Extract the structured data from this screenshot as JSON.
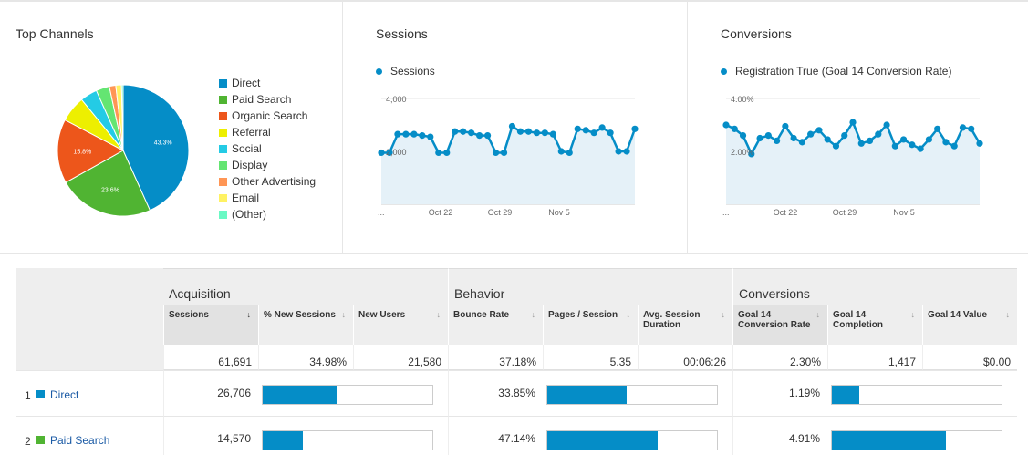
{
  "panels": {
    "top_channels": {
      "title": "Top Channels"
    },
    "sessions": {
      "title": "Sessions",
      "series_label": "Sessions"
    },
    "conversions": {
      "title": "Conversions",
      "series_label": "Registration True (Goal 14 Conversion Rate)"
    }
  },
  "pie": {
    "slices": [
      {
        "name": "Direct",
        "value": 43.3,
        "color": "#058dc7",
        "label": "43.3%"
      },
      {
        "name": "Paid Search",
        "value": 23.6,
        "color": "#50b432",
        "label": "23.6%"
      },
      {
        "name": "Organic Search",
        "value": 15.8,
        "color": "#ed561b",
        "label": "15.8%"
      },
      {
        "name": "Referral",
        "value": 6.4,
        "color": "#edef00",
        "label": ""
      },
      {
        "name": "Social",
        "value": 4.2,
        "color": "#24cbe5",
        "label": ""
      },
      {
        "name": "Display",
        "value": 3.3,
        "color": "#64e572",
        "label": ""
      },
      {
        "name": "Other Advertising",
        "value": 1.6,
        "color": "#ff9655",
        "label": ""
      },
      {
        "name": "Email",
        "value": 1.4,
        "color": "#fff263",
        "label": ""
      },
      {
        "name": "(Other)",
        "value": 0.4,
        "color": "#6af9c4",
        "label": ""
      }
    ]
  },
  "chart_data": [
    {
      "type": "pie",
      "title": "Top Channels",
      "categories": [
        "Direct",
        "Paid Search",
        "Organic Search",
        "Referral",
        "Social",
        "Display",
        "Other Advertising",
        "Email",
        "(Other)"
      ],
      "values": [
        43.3,
        23.6,
        15.8,
        6.4,
        4.2,
        3.3,
        1.6,
        1.4,
        0.4
      ]
    },
    {
      "type": "line",
      "title": "Sessions",
      "series": [
        {
          "name": "Sessions",
          "values": [
            1950,
            1950,
            2650,
            2650,
            2650,
            2600,
            2550,
            1950,
            1950,
            2750,
            2750,
            2700,
            2600,
            2600,
            1950,
            1950,
            2950,
            2750,
            2750,
            2700,
            2700,
            2650,
            2000,
            1950,
            2850,
            2800,
            2700,
            2900,
            2700,
            2000,
            2000,
            2850
          ]
        }
      ],
      "x_ticks": [
        "...",
        "Oct 22",
        "Oct 29",
        "Nov 5"
      ],
      "y_ticks": [
        "2,000",
        "4,000"
      ],
      "ylim": [
        0,
        4000
      ]
    },
    {
      "type": "line",
      "title": "Conversions",
      "series": [
        {
          "name": "Registration True (Goal 14 Conversion Rate)",
          "values": [
            3.0,
            2.85,
            2.6,
            1.9,
            2.5,
            2.6,
            2.4,
            2.95,
            2.5,
            2.35,
            2.65,
            2.8,
            2.45,
            2.2,
            2.6,
            3.1,
            2.3,
            2.4,
            2.65,
            3.0,
            2.2,
            2.45,
            2.25,
            2.1,
            2.45,
            2.85,
            2.35,
            2.2,
            2.9,
            2.85,
            2.3
          ]
        }
      ],
      "x_ticks": [
        "...",
        "Oct 22",
        "Oct 29",
        "Nov 5"
      ],
      "y_ticks": [
        "2.00%",
        "4.00%"
      ],
      "ylim": [
        0,
        4.0
      ]
    }
  ],
  "table": {
    "groups": [
      "Acquisition",
      "Behavior",
      "Conversions"
    ],
    "columns": [
      "Sessions",
      "% New Sessions",
      "New Users",
      "Bounce Rate",
      "Pages / Session",
      "Avg. Session Duration",
      "Goal 14 Conversion Rate",
      "Goal 14 Completion",
      "Goal 14 Value"
    ],
    "totals": [
      "61,691",
      "34.98%",
      "21,580",
      "37.18%",
      "5.35",
      "00:06:26",
      "2.30%",
      "1,417",
      "$0.00"
    ],
    "rows": [
      {
        "rank": "1",
        "name": "Direct",
        "color": "#058dc7",
        "sessions": "26,706",
        "sessions_share": 0.433,
        "bounce": "33.85%",
        "bounce_share": 0.47,
        "conv": "1.19%",
        "conv_share": 0.16
      },
      {
        "rank": "2",
        "name": "Paid Search",
        "color": "#50b432",
        "sessions": "14,570",
        "sessions_share": 0.236,
        "bounce": "47.14%",
        "bounce_share": 0.65,
        "conv": "4.91%",
        "conv_share": 0.67
      }
    ]
  }
}
